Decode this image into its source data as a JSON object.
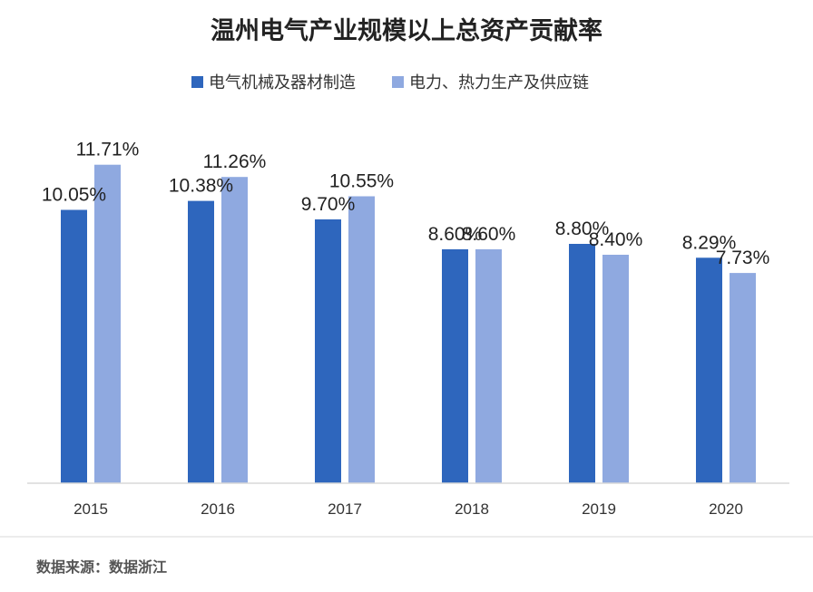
{
  "chart_data": {
    "type": "bar",
    "title": "温州电气产业规模以上总资产贡献率",
    "categories": [
      "2015",
      "2016",
      "2017",
      "2018",
      "2019",
      "2020"
    ],
    "series": [
      {
        "name": "电气机械及器材制造",
        "values": [
          10.05,
          10.38,
          9.7,
          8.6,
          8.8,
          8.29
        ],
        "labels": [
          "10.05%",
          "10.38%",
          "9.70%",
          "8.60%",
          "8.80%",
          "8.29%"
        ],
        "color": "#2E66BD"
      },
      {
        "name": "电力、热力生产及供应链",
        "values": [
          11.71,
          11.26,
          10.55,
          8.6,
          8.4,
          7.73
        ],
        "labels": [
          "11.71%",
          "11.26%",
          "10.55%",
          "8.60%",
          "8.40%",
          "7.73%"
        ],
        "color": "#8FA9E0"
      }
    ],
    "ylim": [
      0,
      14
    ],
    "grid": false,
    "legend_position": "top"
  },
  "source": "数据来源：数据浙江",
  "colors": {
    "axis": "#D9D9D9",
    "text": "#222222"
  }
}
